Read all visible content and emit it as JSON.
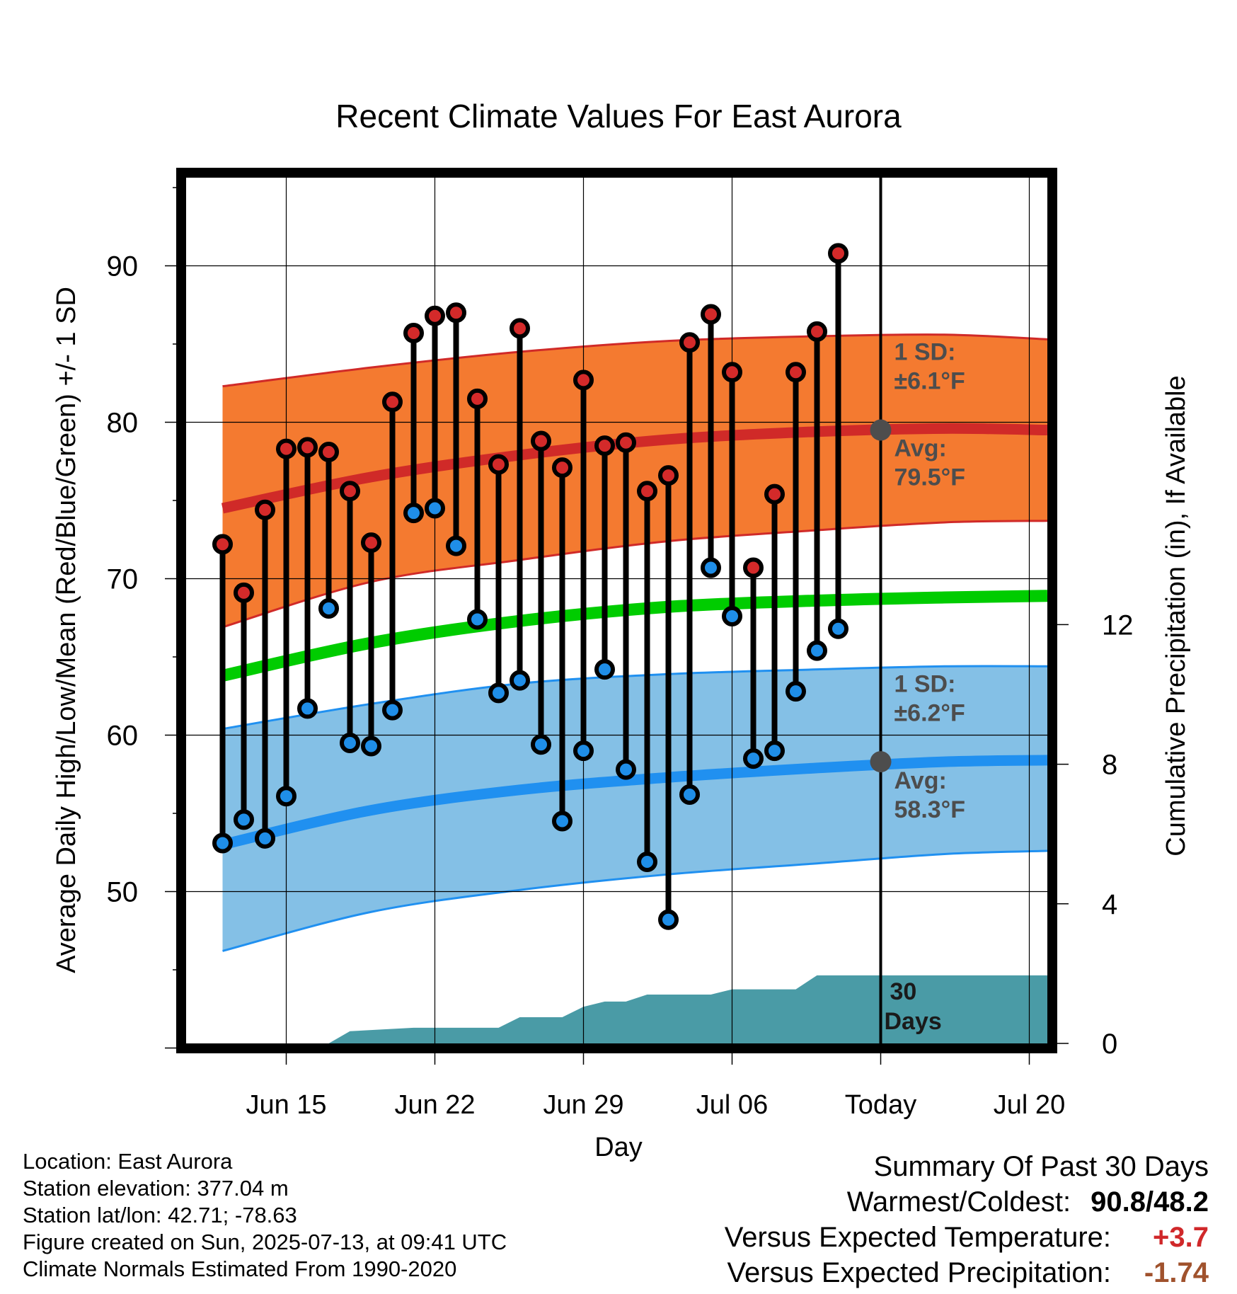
{
  "chart_data": {
    "type": "line",
    "title": "Recent Climate Values For East Aurora",
    "xlabel": "Day",
    "ylabel_left": "Average Daily High/Low/Mean (Red/Blue/Green) +/- 1 SD",
    "ylabel_right": "Cumulative Precipitation (in), If Available",
    "x_range": [
      "2025-06-11",
      "2025-07-23"
    ],
    "ylim_left": [
      39,
      96
    ],
    "ylim_right": [
      0,
      26
    ],
    "yticks_left": [
      50,
      60,
      70,
      80,
      90
    ],
    "yticks_right": [
      0,
      4,
      8,
      12
    ],
    "x_ticks": [
      {
        "date": "2025-06-15",
        "label": "Jun 15"
      },
      {
        "date": "2025-06-22",
        "label": "Jun 22"
      },
      {
        "date": "2025-06-29",
        "label": "Jun 29"
      },
      {
        "date": "2025-07-06",
        "label": "Jul 06"
      },
      {
        "date": "2025-07-13",
        "label": "Today"
      },
      {
        "date": "2025-07-20",
        "label": "Jul 20"
      }
    ],
    "today": "2025-07-13",
    "grid": true,
    "colors": {
      "high_band": "#f47a30",
      "high_line": "#d02a28",
      "low_band": "#84c0e6",
      "low_line": "#2090f0",
      "mean_line": "#00cc00",
      "precip": "#4a9ba6",
      "high_dot": "#d42a2a",
      "low_dot": "#1f8ee8",
      "annotation": "#4d4d4d"
    },
    "normals": {
      "dates": [
        "2025-06-12",
        "2025-06-19",
        "2025-06-26",
        "2025-07-03",
        "2025-07-10",
        "2025-07-16",
        "2025-07-22"
      ],
      "avg_high": [
        74.5,
        76.5,
        77.9,
        78.9,
        79.4,
        79.6,
        79.5
      ],
      "high_upper": [
        82.3,
        83.5,
        84.5,
        85.2,
        85.5,
        85.6,
        85.3
      ],
      "high_lower": [
        66.9,
        69.8,
        71.2,
        72.4,
        73.1,
        73.6,
        73.7
      ],
      "avg_low": [
        53.0,
        55.2,
        56.5,
        57.3,
        57.9,
        58.3,
        58.4
      ],
      "low_upper": [
        60.4,
        62.0,
        63.3,
        63.9,
        64.2,
        64.4,
        64.4
      ],
      "low_lower": [
        46.2,
        48.7,
        50.1,
        51.1,
        51.8,
        52.4,
        52.6
      ],
      "avg_mean": [
        63.8,
        65.9,
        67.3,
        68.2,
        68.6,
        68.8,
        68.9
      ]
    },
    "daily": [
      {
        "date": "2025-06-12",
        "high": 72.2,
        "low": 53.1
      },
      {
        "date": "2025-06-13",
        "high": 69.1,
        "low": 54.6
      },
      {
        "date": "2025-06-14",
        "high": 74.4,
        "low": 53.4
      },
      {
        "date": "2025-06-15",
        "high": 78.3,
        "low": 56.1
      },
      {
        "date": "2025-06-16",
        "high": 78.4,
        "low": 61.7
      },
      {
        "date": "2025-06-17",
        "high": 78.1,
        "low": 68.1
      },
      {
        "date": "2025-06-18",
        "high": 75.6,
        "low": 59.5
      },
      {
        "date": "2025-06-19",
        "high": 72.3,
        "low": 59.3
      },
      {
        "date": "2025-06-20",
        "high": 81.3,
        "low": 61.6
      },
      {
        "date": "2025-06-21",
        "high": 85.7,
        "low": 74.2
      },
      {
        "date": "2025-06-22",
        "high": 86.8,
        "low": 74.5
      },
      {
        "date": "2025-06-23",
        "high": 87.0,
        "low": 72.1
      },
      {
        "date": "2025-06-24",
        "high": 81.5,
        "low": 67.4
      },
      {
        "date": "2025-06-25",
        "high": 77.3,
        "low": 62.7
      },
      {
        "date": "2025-06-26",
        "high": 86.0,
        "low": 63.5
      },
      {
        "date": "2025-06-27",
        "high": 78.8,
        "low": 59.4
      },
      {
        "date": "2025-06-28",
        "high": 77.1,
        "low": 54.5
      },
      {
        "date": "2025-06-29",
        "high": 82.7,
        "low": 59.0
      },
      {
        "date": "2025-06-30",
        "high": 78.5,
        "low": 64.2
      },
      {
        "date": "2025-07-01",
        "high": 78.7,
        "low": 57.8
      },
      {
        "date": "2025-07-02",
        "high": 75.6,
        "low": 51.9
      },
      {
        "date": "2025-07-03",
        "high": 76.6,
        "low": 48.2
      },
      {
        "date": "2025-07-04",
        "high": 85.1,
        "low": 56.2
      },
      {
        "date": "2025-07-05",
        "high": 86.9,
        "low": 70.7
      },
      {
        "date": "2025-07-06",
        "high": 83.2,
        "low": 67.6
      },
      {
        "date": "2025-07-07",
        "high": 70.7,
        "low": 58.5
      },
      {
        "date": "2025-07-08",
        "high": 75.4,
        "low": 59.0
      },
      {
        "date": "2025-07-09",
        "high": 83.2,
        "low": 62.8
      },
      {
        "date": "2025-07-10",
        "high": 85.8,
        "low": 65.4
      },
      {
        "date": "2025-07-11",
        "high": 90.8,
        "low": 66.8
      }
    ],
    "precip_cumulative": {
      "dates": [
        "2025-06-11",
        "2025-06-17",
        "2025-06-18",
        "2025-06-21",
        "2025-06-22",
        "2025-06-23",
        "2025-06-24",
        "2025-06-25",
        "2025-06-26",
        "2025-06-27",
        "2025-06-28",
        "2025-06-29",
        "2025-06-30",
        "2025-07-01",
        "2025-07-02",
        "2025-07-03",
        "2025-07-04",
        "2025-07-05",
        "2025-07-06",
        "2025-07-07",
        "2025-07-08",
        "2025-07-09",
        "2025-07-10",
        "2025-07-11",
        "2025-07-23"
      ],
      "values": [
        0.0,
        0.0,
        0.35,
        0.45,
        0.45,
        0.45,
        0.45,
        0.45,
        0.75,
        0.75,
        0.75,
        1.05,
        1.2,
        1.2,
        1.4,
        1.4,
        1.4,
        1.4,
        1.55,
        1.55,
        1.55,
        1.55,
        1.95,
        1.95,
        1.95
      ]
    },
    "annotations": {
      "high_sd_label": "1 SD:",
      "high_sd_value": "±6.1°F",
      "high_avg_label": "Avg:",
      "high_avg_value": "79.5°F",
      "low_sd_label": "1 SD:",
      "low_sd_value": "±6.2°F",
      "low_avg_label": "Avg:",
      "low_avg_value": "58.3°F",
      "precip_line1": "30",
      "precip_line2": "Days",
      "today_high": 79.5,
      "today_low": 58.3
    }
  },
  "info": {
    "location": "Location: East Aurora",
    "elevation": "Station elevation: 377.04 m",
    "latlon": "Station lat/lon: 42.71; -78.63",
    "created": "Figure created on Sun, 2025-07-13, at 09:41 UTC",
    "normals": "Climate Normals Estimated From 1990-2020"
  },
  "summary": {
    "title": "Summary Of Past 30 Days",
    "warm_cold_label": "Warmest/Coldest:",
    "warmest": "90.8",
    "separator": "/",
    "coldest": "48.2",
    "temp_label": "Versus Expected Temperature:",
    "temp_value": "+3.7",
    "temp_color": "#d0282a",
    "precip_label": "Versus Expected Precipitation:",
    "precip_value": "-1.74",
    "precip_color": "#a0522d"
  }
}
